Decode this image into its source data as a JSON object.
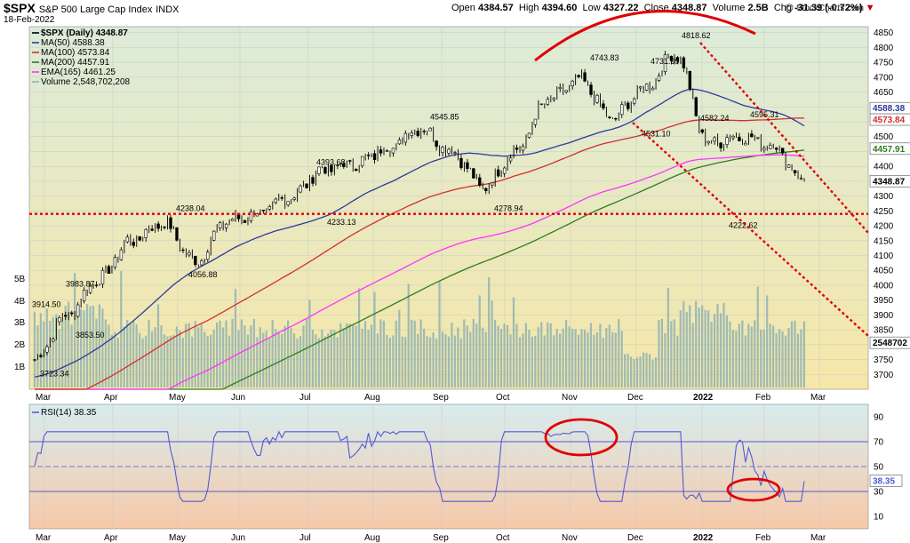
{
  "header": {
    "symbol": "$SPX",
    "name": "S&P 500 Large Cap Index",
    "exchange": "INDX",
    "date": "18-Feb-2022",
    "open_label": "Open",
    "open": "4384.57",
    "high_label": "High",
    "high": "4394.60",
    "low_label": "Low",
    "low": "4327.22",
    "close_label": "Close",
    "close": "4348.87",
    "volume_label": "Volume",
    "volume": "2.5B",
    "chg_label": "Chg",
    "chg": "-31.39 (-0.72%)",
    "chg_arrow": "▼",
    "watermark": "@ StockCharts.com"
  },
  "legend": {
    "price": "$SPX (Daily) 4348.87",
    "ma50": "MA(50) 4588.38",
    "ma100": "MA(100) 4573.84",
    "ma200": "MA(200) 4457.91",
    "ema165": "EMA(165) 4461.25",
    "volume": "Volume 2,548,702,208",
    "rsi": "RSI(14) 38.35"
  },
  "colors": {
    "price": "#000000",
    "ma50": "#2b3a9c",
    "ma100": "#d32f2f",
    "ma200": "#2e7d1f",
    "ema165": "#ff33ff",
    "volume": "#8fb3b3",
    "rsi": "#4f5bd5",
    "annotation": "#e00000",
    "panel_top": "#dcebd9",
    "panel_bottom": "#f6e7a8",
    "rsi_top": "#d8ecef",
    "rsi_bottom": "#f7c9a8",
    "badge_ma50": "#2b3a9c",
    "badge_ma100": "#d32f2f",
    "badge_ma200": "#2e7d1f"
  },
  "chart_data": {
    "type": "line",
    "title": "$SPX (Daily)",
    "x_months": [
      "Mar",
      "Apr",
      "May",
      "Jun",
      "Jul",
      "Aug",
      "Sep",
      "Oct",
      "Nov",
      "Dec",
      "2022",
      "Feb",
      "Mar"
    ],
    "price_axis": {
      "ylim": [
        3650,
        4870
      ],
      "ticks": [
        3700,
        3750,
        3800,
        3850,
        3900,
        3950,
        4000,
        4050,
        4100,
        4150,
        4200,
        4250,
        4300,
        4350,
        4400,
        4450,
        4500,
        4550,
        4600,
        4650,
        4700,
        4750,
        4800,
        4850
      ]
    },
    "volume_axis": {
      "ticks": [
        "1B",
        "2B",
        "3B",
        "4B",
        "5B"
      ]
    },
    "right_badges": {
      "ma50": "4588.38",
      "ma100": "4573.84",
      "ma200": "4457.91",
      "close": "4348.87",
      "volume": "2548702"
    },
    "price_series_monthly": [
      {
        "x": "Mar",
        "y": 3750
      },
      {
        "x": "Mar-mid",
        "y": 3900
      },
      {
        "x": "Apr",
        "y": 4020
      },
      {
        "x": "Apr-mid",
        "y": 4150
      },
      {
        "x": "May",
        "y": 4210
      },
      {
        "x": "May-mid",
        "y": 4080
      },
      {
        "x": "Jun",
        "y": 4215
      },
      {
        "x": "Jun-mid",
        "y": 4240
      },
      {
        "x": "Jul",
        "y": 4300
      },
      {
        "x": "Jul-mid",
        "y": 4390
      },
      {
        "x": "Aug",
        "y": 4410
      },
      {
        "x": "Aug-mid",
        "y": 4460
      },
      {
        "x": "Sep",
        "y": 4530
      },
      {
        "x": "Sep-mid",
        "y": 4450
      },
      {
        "x": "Oct",
        "y": 4330
      },
      {
        "x": "Oct-mid",
        "y": 4450
      },
      {
        "x": "Nov",
        "y": 4620
      },
      {
        "x": "Nov-mid",
        "y": 4690
      },
      {
        "x": "Dec",
        "y": 4560
      },
      {
        "x": "Dec-mid",
        "y": 4660
      },
      {
        "x": "2022",
        "y": 4780
      },
      {
        "x": "Jan-mid",
        "y": 4480
      },
      {
        "x": "Feb",
        "y": 4500
      },
      {
        "x": "Feb-mid",
        "y": 4470
      },
      {
        "x": "Feb-end",
        "y": 4349
      }
    ],
    "annotations": [
      {
        "label": "3914.50",
        "y": 3914.5
      },
      {
        "label": "3983.87",
        "y": 3983.87
      },
      {
        "label": "3853.50",
        "y": 3853.5
      },
      {
        "label": "3723.34",
        "y": 3723.34
      },
      {
        "label": "4238.04",
        "y": 4238.04
      },
      {
        "label": "4056.88",
        "y": 4056.88
      },
      {
        "label": "4393.68",
        "y": 4393.68
      },
      {
        "label": "4233.13",
        "y": 4233.13
      },
      {
        "label": "4545.85",
        "y": 4545.85
      },
      {
        "label": "4278.94",
        "y": 4278.94
      },
      {
        "label": "4743.83",
        "y": 4743.83
      },
      {
        "label": "4731.99",
        "y": 4731.99
      },
      {
        "label": "4818.62",
        "y": 4818.62
      },
      {
        "label": "4531.10",
        "y": 4531.1
      },
      {
        "label": "4582.24",
        "y": 4582.24
      },
      {
        "label": "4595.31",
        "y": 4595.31
      },
      {
        "label": "4222.62",
        "y": 4222.62
      }
    ],
    "support_level": 4240,
    "rsi_axis": {
      "ylim": [
        0,
        100
      ],
      "ticks": [
        10,
        30,
        50,
        70,
        90
      ],
      "bands": [
        30,
        50,
        70
      ],
      "current": 38.35
    }
  }
}
